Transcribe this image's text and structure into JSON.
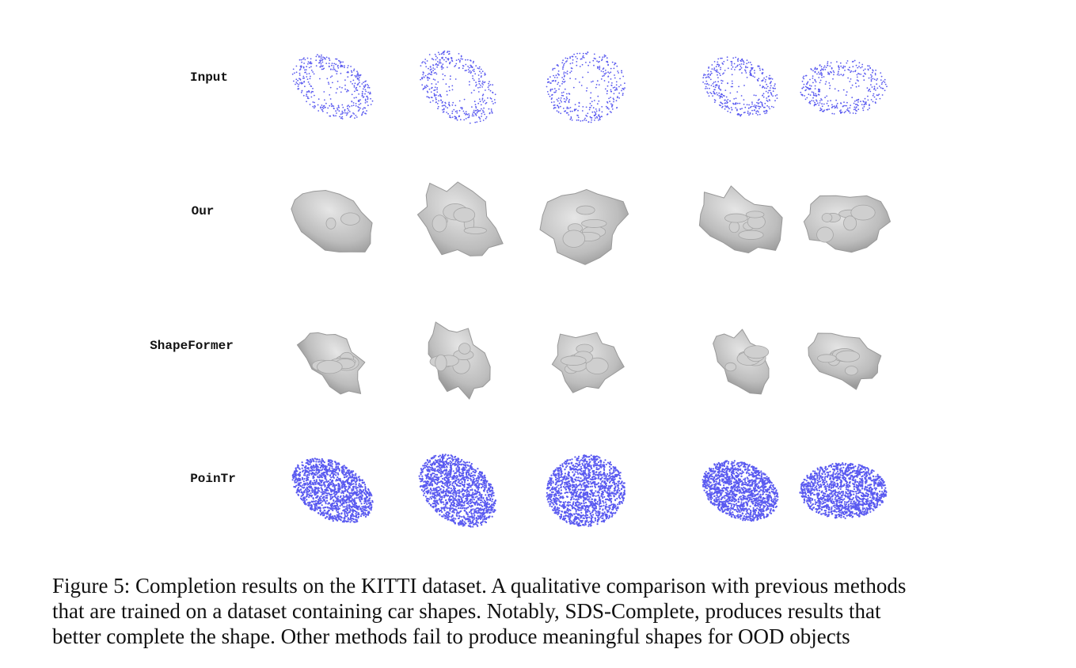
{
  "figure": {
    "rows": [
      {
        "label": "Input"
      },
      {
        "label": "Our"
      },
      {
        "label": "ShapeFormer"
      },
      {
        "label": "PoinTr"
      }
    ],
    "caption_lines": [
      "Figure 5: Completion results on the KITTI dataset. A qualitative comparison with previous methods",
      "that are trained on a dataset containing car shapes. Notably, SDS-Complete, produces results that",
      "better complete the shape. Other methods fail to produce meaningful shapes for OOD objects"
    ]
  }
}
